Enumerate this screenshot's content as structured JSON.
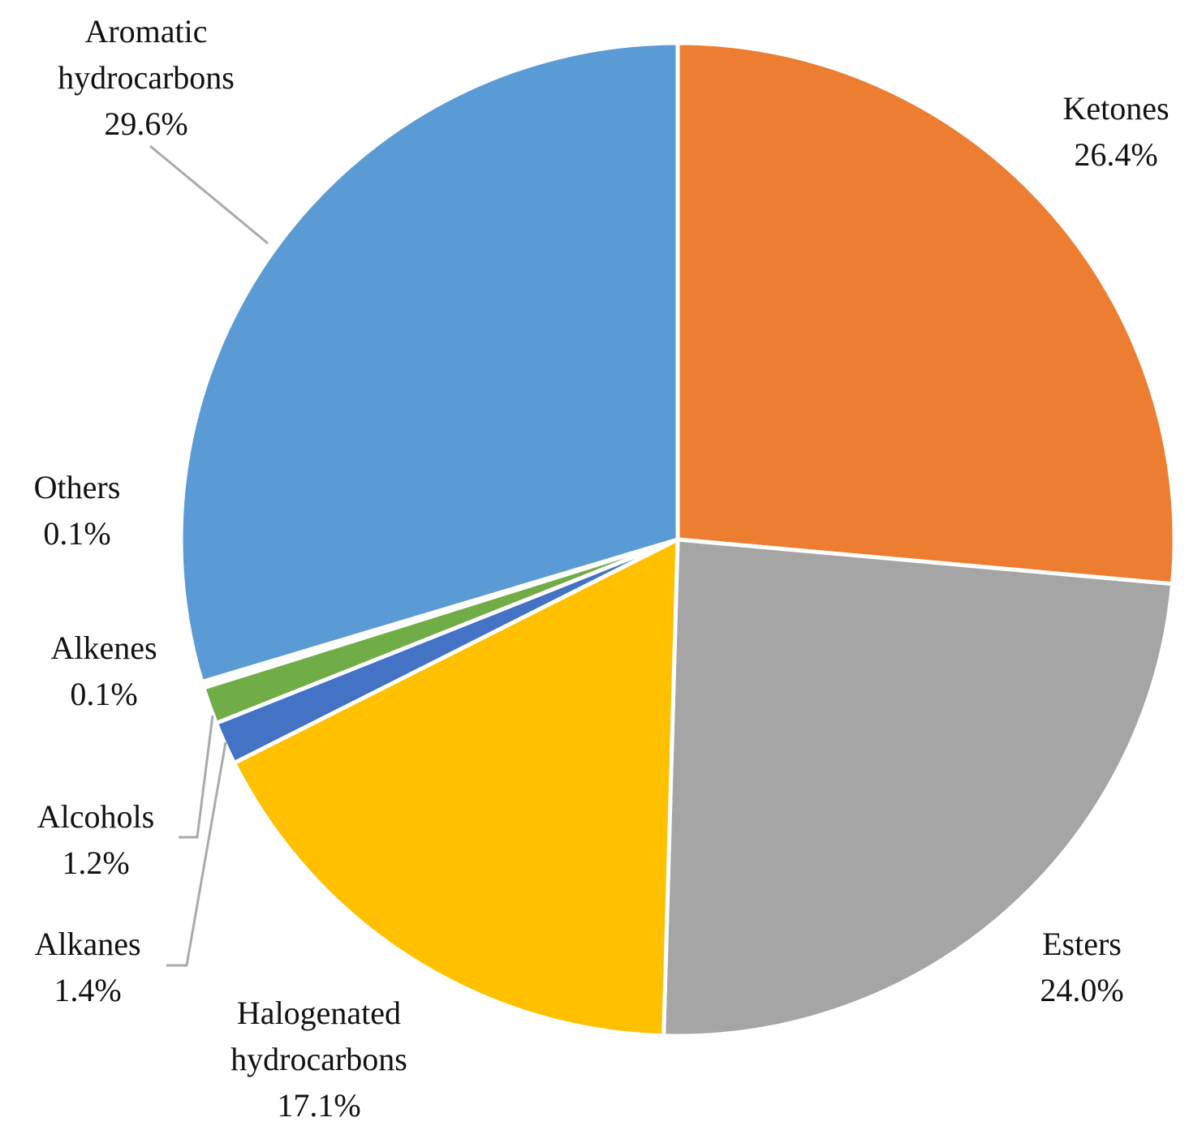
{
  "chart_data": {
    "type": "pie",
    "categories": [
      "Ketones",
      "Esters",
      "Halogenated hydrocarbons",
      "Alkanes",
      "Alcohols",
      "Alkenes",
      "Others",
      "Aromatic hydrocarbons"
    ],
    "values": [
      26.4,
      24.0,
      17.1,
      1.4,
      1.2,
      0.1,
      0.1,
      29.6
    ],
    "value_labels": [
      "26.4%",
      "24.0%",
      "17.1%",
      "1.4%",
      "1.2%",
      "0.1%",
      "0.1%",
      "29.6%"
    ],
    "colors": [
      "#ed7d31",
      "#a5a5a5",
      "#ffc000",
      "#4472c4",
      "#70ad47",
      "#264478",
      "#9e480e",
      "#5b9bd5"
    ]
  }
}
